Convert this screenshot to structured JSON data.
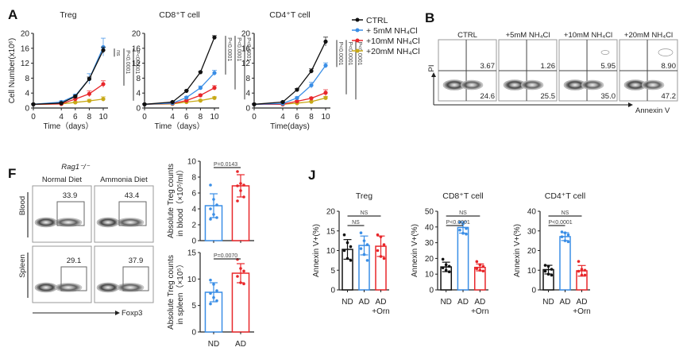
{
  "panel_letters": {
    "A": "A",
    "B": "B",
    "F": "F",
    "J": "J"
  },
  "colors": {
    "ctrl": "#111111",
    "nh4_5": "#3a8ee6",
    "nh4_10": "#e8262a",
    "nh4_20": "#c8a917",
    "nd": "#3a8ee6",
    "ad": "#e8262a",
    "nd_black": "#111111"
  },
  "legend_A": [
    {
      "label": "CTRL",
      "color_key": "ctrl"
    },
    {
      "label": "+ 5mM  NH₄Cl",
      "color_key": "nh4_5"
    },
    {
      "label": "+10mM NH₄Cl",
      "color_key": "nh4_10"
    },
    {
      "label": "+20mM NH₄Cl",
      "color_key": "nh4_20"
    }
  ],
  "flow_B": {
    "y_axis": "PI",
    "x_axis": "Annexin V",
    "plots": [
      {
        "label": "CTRL",
        "upper_right": "3.67",
        "lower_right": "24.6"
      },
      {
        "label": "+5mM NH₄Cl",
        "upper_right": "1.26",
        "lower_right": "25.5"
      },
      {
        "label": "+10mM NH₄Cl",
        "upper_right": "5.95",
        "lower_right": "35.0"
      },
      {
        "label": "+20mM NH₄Cl",
        "upper_right": "8.90",
        "lower_right": "47.2"
      }
    ]
  },
  "flow_F": {
    "genotype": "Rag1⁻/⁻",
    "columns": [
      "Normal Diet",
      "Ammonia Diet"
    ],
    "rows": [
      "Blood",
      "Spleen"
    ],
    "values": [
      [
        "33.9",
        "43.4"
      ],
      [
        "29.1",
        "37.9"
      ]
    ],
    "x_axis": "Foxp3"
  },
  "chart_data": [
    {
      "id": "A-treg",
      "type": "line",
      "title": "Treg",
      "xlabel": "Time（days）",
      "ylabel": "Cell Number(x10⁶)",
      "x": [
        0,
        4,
        6,
        8,
        10
      ],
      "xlim": [
        0,
        10
      ],
      "ylim": [
        0,
        20
      ],
      "xticks": [
        "0",
        "4",
        "6",
        "8",
        "10"
      ],
      "yticks": [
        "0",
        "4",
        "8",
        "12",
        "16",
        "20"
      ],
      "series": [
        {
          "name": "CTRL",
          "color_key": "ctrl",
          "values": [
            1.0,
            1.3,
            3.1,
            7.8,
            15.5
          ],
          "err": [
            0.1,
            0.2,
            0.3,
            0.5,
            0.8
          ]
        },
        {
          "name": "+5mM NH4Cl",
          "color_key": "nh4_5",
          "values": [
            1.0,
            1.6,
            3.3,
            7.8,
            16.3
          ],
          "err": [
            0.1,
            0.3,
            0.4,
            1.4,
            2.4
          ]
        },
        {
          "name": "+10mM NH4Cl",
          "color_key": "nh4_10",
          "values": [
            1.0,
            1.1,
            2.4,
            3.8,
            6.4
          ],
          "err": [
            0.1,
            0.2,
            0.4,
            0.8,
            0.9
          ]
        },
        {
          "name": "+20mM NH4Cl",
          "color_key": "nh4_20",
          "values": [
            1.0,
            1.1,
            1.5,
            1.9,
            2.4
          ],
          "err": [
            0.1,
            0.1,
            0.2,
            0.4,
            0.6
          ]
        }
      ],
      "annotations": [
        "ns",
        "P<0.0001",
        "P<0.0001"
      ]
    },
    {
      "id": "A-cd8",
      "type": "line",
      "title": "CD8⁺T cell",
      "xlabel": "Time（days）",
      "ylabel": "",
      "x": [
        0,
        4,
        6,
        8,
        10
      ],
      "xlim": [
        0,
        10
      ],
      "ylim": [
        0,
        20
      ],
      "xticks": [
        "0",
        "4",
        "6",
        "8",
        "10"
      ],
      "yticks": [
        "0",
        "4",
        "8",
        "12",
        "16",
        "20"
      ],
      "series": [
        {
          "name": "CTRL",
          "color_key": "ctrl",
          "values": [
            1.0,
            1.6,
            4.6,
            9.6,
            18.9
          ],
          "err": [
            0.1,
            0.1,
            0.2,
            0.2,
            0.5
          ]
        },
        {
          "name": "+5mM NH4Cl",
          "color_key": "nh4_5",
          "values": [
            1.0,
            1.3,
            2.8,
            5.4,
            9.4
          ],
          "err": [
            0.1,
            0.2,
            0.3,
            0.5,
            0.7
          ]
        },
        {
          "name": "+10mM NH4Cl",
          "color_key": "nh4_10",
          "values": [
            1.0,
            1.2,
            2.0,
            3.4,
            5.4
          ],
          "err": [
            0.1,
            0.1,
            0.2,
            0.3,
            0.6
          ]
        },
        {
          "name": "+20mM NH4Cl",
          "color_key": "nh4_20",
          "values": [
            1.0,
            1.1,
            1.6,
            2.0,
            2.7
          ],
          "err": [
            0.1,
            0.1,
            0.1,
            0.2,
            0.3
          ]
        }
      ],
      "annotations": [
        "P<0.0001",
        "P<0.0001",
        "P<0.0001"
      ]
    },
    {
      "id": "A-cd4",
      "type": "line",
      "title": "CD4⁺T cell",
      "xlabel": "Time(days)",
      "ylabel": "",
      "x": [
        0,
        4,
        6,
        8,
        10
      ],
      "xlim": [
        0,
        10
      ],
      "ylim": [
        0,
        20
      ],
      "xticks": [
        "0",
        "4",
        "6",
        "8",
        "10"
      ],
      "yticks": [
        "0",
        "4",
        "8",
        "12",
        "16",
        "20"
      ],
      "series": [
        {
          "name": "CTRL",
          "color_key": "ctrl",
          "values": [
            1.0,
            1.6,
            4.9,
            9.9,
            17.8
          ],
          "err": [
            0.1,
            0.1,
            0.3,
            0.6,
            1.2
          ]
        },
        {
          "name": "+5mM NH4Cl",
          "color_key": "nh4_5",
          "values": [
            1.0,
            1.2,
            2.7,
            6.1,
            11.4
          ],
          "err": [
            0.1,
            0.1,
            0.3,
            0.8,
            0.7
          ]
        },
        {
          "name": "+10mM NH4Cl",
          "color_key": "nh4_10",
          "values": [
            1.0,
            1.0,
            1.8,
            2.6,
            4.1
          ],
          "err": [
            0.1,
            0.1,
            0.2,
            0.3,
            0.8
          ]
        },
        {
          "name": "+20mM NH4Cl",
          "color_key": "nh4_20",
          "values": [
            1.0,
            1.0,
            1.3,
            1.7,
            2.7
          ],
          "err": [
            0.1,
            0.1,
            0.2,
            0.2,
            0.4
          ]
        }
      ],
      "annotations": [
        "P<0.0001",
        "P<0.0001",
        "P<0.0001"
      ]
    },
    {
      "id": "F-blood",
      "type": "bar",
      "title": "",
      "ylabel_lines": [
        "Absolute Treg counts",
        "in blood（×10⁵/ml）"
      ],
      "categories": [
        "ND",
        "AD"
      ],
      "ylim": [
        0,
        10
      ],
      "yticks": [
        "0",
        "2",
        "4",
        "6",
        "8",
        "10"
      ],
      "values": [
        4.4,
        6.9
      ],
      "err": [
        1.5,
        1.4
      ],
      "color_keys": [
        "nd",
        "ad"
      ],
      "points": [
        [
          7.0,
          5.2,
          4.5,
          4.0,
          3.3,
          2.9,
          2.7
        ],
        [
          8.7,
          7.2,
          7.0,
          6.9,
          6.3,
          5.5,
          5.0
        ]
      ],
      "significance": [
        {
          "from": 0,
          "to": 1,
          "label": "P=0.0143"
        }
      ]
    },
    {
      "id": "F-spleen",
      "type": "bar",
      "title": "",
      "ylabel_lines": [
        "Absolute Treg counts",
        "in spleen（×10⁵）"
      ],
      "categories": [
        "ND",
        "AD"
      ],
      "ylim": [
        0,
        15
      ],
      "yticks": [
        "0",
        "5",
        "10",
        "15"
      ],
      "values": [
        7.5,
        11.1
      ],
      "err": [
        1.8,
        1.8
      ],
      "color_keys": [
        "nd",
        "ad"
      ],
      "points": [
        [
          9.8,
          9.0,
          7.8,
          7.3,
          6.5,
          5.9,
          5.3
        ],
        [
          13.7,
          12.0,
          11.5,
          10.5,
          9.3,
          9.1
        ]
      ],
      "significance": [
        {
          "from": 0,
          "to": 1,
          "label": "P=0.0070"
        }
      ]
    },
    {
      "id": "J-treg",
      "type": "bar",
      "title": "Treg",
      "ylabel": "Annexin V+(%)",
      "categories": [
        "ND",
        "AD",
        "AD\n+Orn"
      ],
      "ylim": [
        0,
        20
      ],
      "yticks": [
        "0",
        "5",
        "10",
        "15",
        "20"
      ],
      "values": [
        10.3,
        11.3,
        11.1
      ],
      "err": [
        2.5,
        2.4,
        2.6
      ],
      "color_keys": [
        "nd_black",
        "nd",
        "ad"
      ],
      "points": [
        [
          14.0,
          12.0,
          11.0,
          10.0,
          8.0,
          7.5
        ],
        [
          14.5,
          12.5,
          11.5,
          10.5,
          9.0,
          7.5
        ],
        [
          14.0,
          13.5,
          11.5,
          10.0,
          8.5,
          8.0
        ]
      ],
      "significance": [
        {
          "from": 0,
          "to": 1,
          "label": "NS"
        },
        {
          "from": 0,
          "to": 2,
          "label": "NS"
        }
      ]
    },
    {
      "id": "J-cd8",
      "type": "bar",
      "title": "CD8⁺T cell",
      "ylabel": "Annexin V+(%)",
      "categories": [
        "ND",
        "AD",
        "AD\n+Orn"
      ],
      "ylim": [
        0,
        50
      ],
      "yticks": [
        "0",
        "10",
        "20",
        "30",
        "40",
        "50"
      ],
      "values": [
        14.6,
        39.7,
        14.3
      ],
      "err": [
        3.0,
        3.6,
        2.2
      ],
      "color_keys": [
        "nd_black",
        "nd",
        "ad"
      ],
      "points": [
        [
          19.5,
          16.0,
          15.0,
          14.0,
          12.5,
          11.5
        ],
        [
          43.0,
          42.0,
          39.0,
          38.0,
          36.0,
          35.5
        ],
        [
          18.0,
          16.0,
          15.0,
          13.5,
          12.5,
          12.0
        ]
      ],
      "significance": [
        {
          "from": 0,
          "to": 1,
          "label": "P<0.0001"
        },
        {
          "from": 0,
          "to": 2,
          "label": "NS"
        }
      ]
    },
    {
      "id": "J-cd4",
      "type": "bar",
      "title": "CD4⁺T cell",
      "ylabel": "Annexin V+(%)",
      "categories": [
        "ND",
        "AD",
        "AD\n+Orn"
      ],
      "ylim": [
        0,
        40
      ],
      "yticks": [
        "0",
        "10",
        "20",
        "30",
        "40"
      ],
      "values": [
        10.3,
        27.1,
        9.7
      ],
      "err": [
        2.2,
        2.0,
        2.7
      ],
      "color_keys": [
        "nd_black",
        "nd",
        "ad"
      ],
      "points": [
        [
          12.5,
          12.0,
          10.5,
          9.5,
          8.0,
          7.5
        ],
        [
          29.5,
          29.0,
          28.0,
          27.0,
          25.0,
          24.5
        ],
        [
          14.5,
          10.5,
          10.0,
          9.5,
          7.5,
          7.5
        ]
      ],
      "significance": [
        {
          "from": 0,
          "to": 1,
          "label": "P<0.0001"
        },
        {
          "from": 0,
          "to": 2,
          "label": "NS"
        }
      ]
    }
  ]
}
